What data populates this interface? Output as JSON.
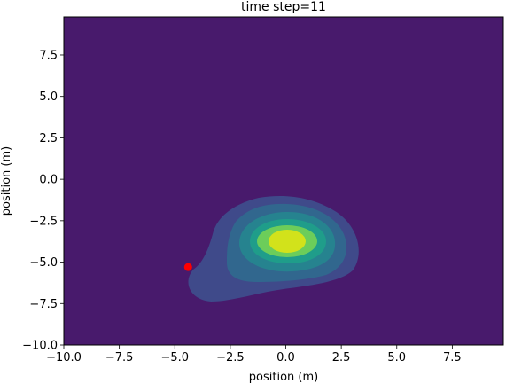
{
  "chart_data": {
    "type": "contour",
    "title": "time step=11",
    "xlabel": "position (m)",
    "ylabel": "position (m)",
    "xlim": [
      -10,
      9.8
    ],
    "ylim": [
      -10,
      9.8
    ],
    "xticks": [
      -10.0,
      -7.5,
      -5.0,
      -2.5,
      0.0,
      2.5,
      5.0,
      7.5
    ],
    "xtick_labels": [
      "−10.0",
      "−7.5",
      "−5.0",
      "−2.5",
      "0.0",
      "2.5",
      "5.0",
      "7.5"
    ],
    "yticks": [
      -10.0,
      -7.5,
      -5.0,
      -2.5,
      0.0,
      2.5,
      5.0,
      7.5
    ],
    "ytick_labels": [
      "−10.0",
      "−7.5",
      "−5.0",
      "−2.5",
      "0.0",
      "2.5",
      "5.0",
      "7.5"
    ],
    "grid": false,
    "colormap": "viridis",
    "background_color": "#481a6c",
    "density_peak": {
      "x": 0.1,
      "y": -3.8
    },
    "contour_levels": [
      {
        "level": 1,
        "color": "#3f4a8a"
      },
      {
        "level": 2,
        "color": "#31678e"
      },
      {
        "level": 3,
        "color": "#26838f"
      },
      {
        "level": 4,
        "color": "#1f9d8a"
      },
      {
        "level": 5,
        "color": "#6ccd5a"
      },
      {
        "level": 6,
        "color": "#d2e21b"
      }
    ],
    "point": {
      "x": -4.4,
      "y": -5.3,
      "color": "#ff0000"
    }
  }
}
